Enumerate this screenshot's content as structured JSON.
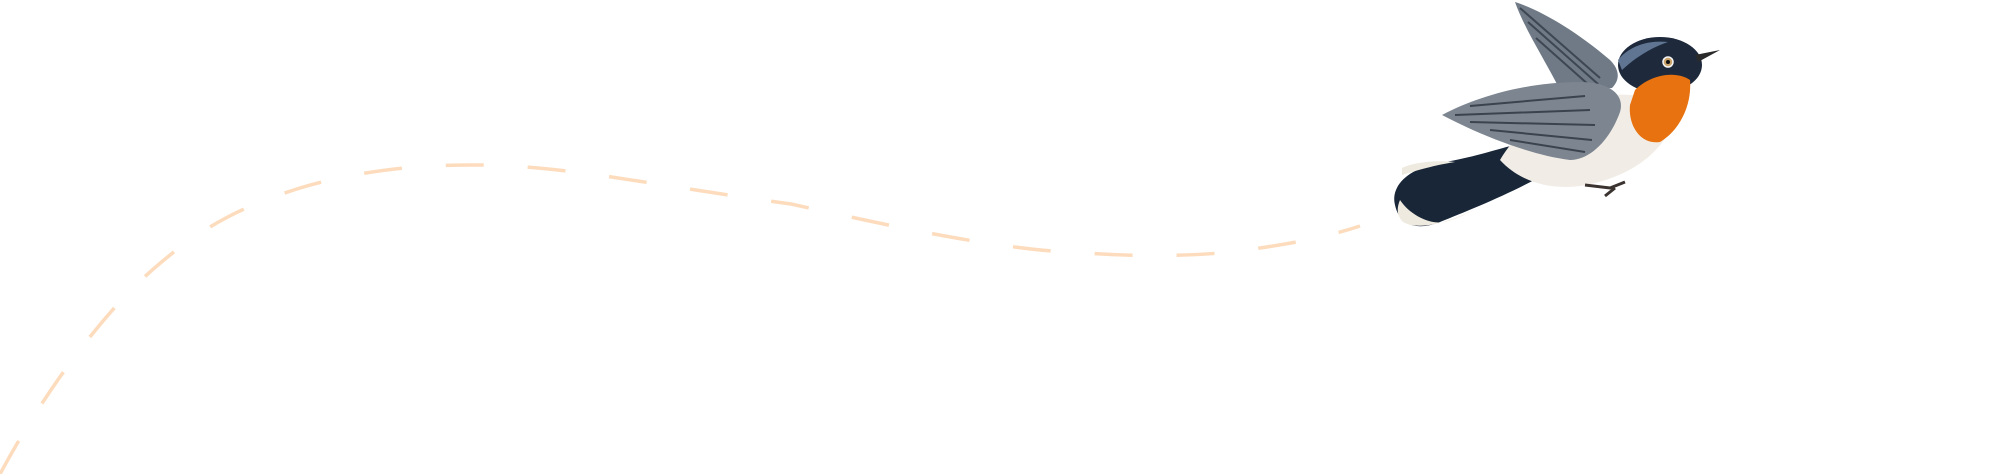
{
  "colors": {
    "background": "#ffffff",
    "flight_path": "#fddcbd",
    "bird_throat": "#e8720f",
    "bird_head": "#1e2a3c",
    "bird_wing": "#7d8590",
    "bird_belly": "#f1ede6"
  },
  "icons": [
    "bird-illustration",
    "flight-path-line"
  ]
}
